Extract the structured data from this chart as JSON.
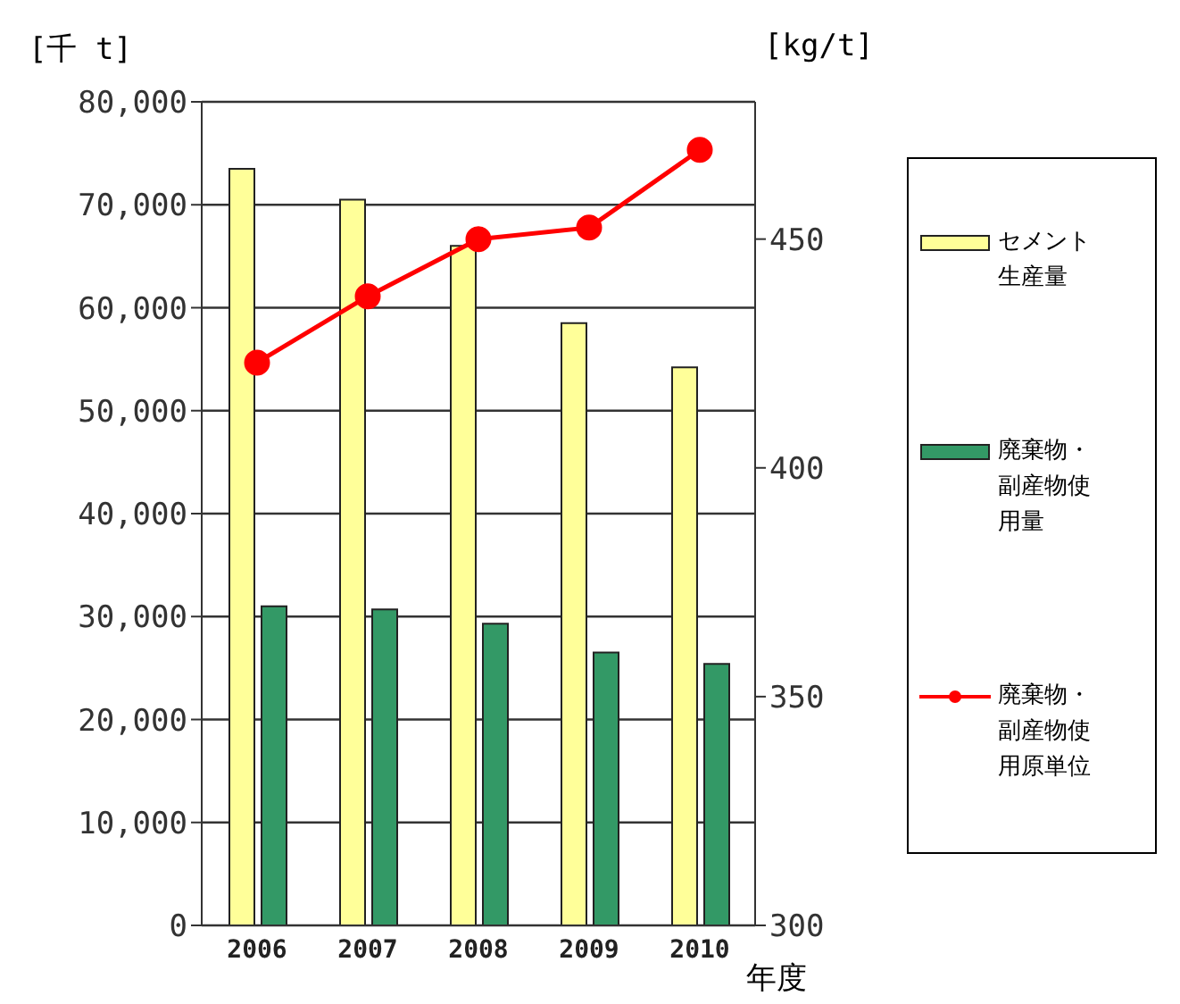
{
  "chart_data": {
    "type": "bar",
    "ylabel": "[千 t]",
    "y2label": "[kg/t]",
    "xlabel": "年度",
    "categories": [
      "2006",
      "2007",
      "2008",
      "2009",
      "2010"
    ],
    "series": [
      {
        "name": "セメント生産量",
        "color": "#ffff99",
        "values": [
          73500,
          70500,
          66000,
          58500,
          54200
        ]
      },
      {
        "name": "廃棄物・副産物使用量",
        "color": "#339966",
        "values": [
          31000,
          30700,
          29300,
          26500,
          25400
        ]
      },
      {
        "name": "廃棄物・副産物使用原単位",
        "type": "line",
        "axis": "y2",
        "color": "#ff0000",
        "values": [
          423,
          437.5,
          450,
          452.5,
          469.5
        ]
      }
    ],
    "ylim": [
      0,
      80000
    ],
    "yticks": [
      {
        "value": 0,
        "label": "0"
      },
      {
        "value": 10000,
        "label": "10,000"
      },
      {
        "value": 20000,
        "label": "20,000"
      },
      {
        "value": 30000,
        "label": "30,000"
      },
      {
        "value": 40000,
        "label": "40,000"
      },
      {
        "value": 50000,
        "label": "50,000"
      },
      {
        "value": 60000,
        "label": "60,000"
      },
      {
        "value": 70000,
        "label": "70,000"
      },
      {
        "value": 80000,
        "label": "80,000"
      }
    ],
    "y2lim": [
      300,
      480
    ],
    "y2ticks": [
      300,
      350,
      400,
      450
    ],
    "grid": "y",
    "legend": "right",
    "marker": "circle",
    "line_style": "solid"
  }
}
